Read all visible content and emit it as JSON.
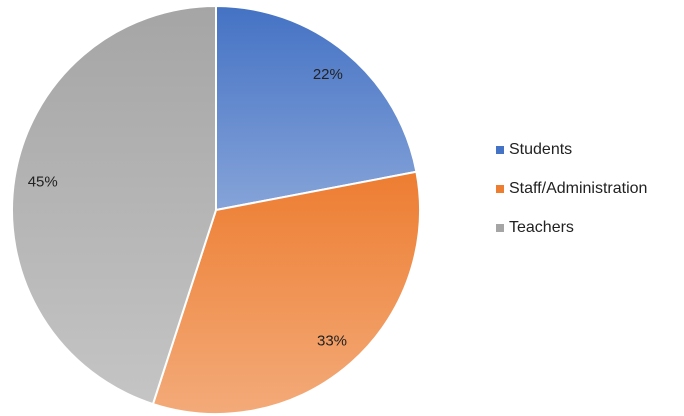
{
  "chart_data": {
    "type": "pie",
    "categories": [
      "Students",
      "Staff/Administration",
      "Teachers"
    ],
    "values": [
      22,
      33,
      45
    ],
    "value_labels": [
      "22%",
      "33%",
      "45%"
    ],
    "colors": [
      "#4472c4",
      "#ed7d31",
      "#a5a5a5"
    ],
    "legend": "right"
  }
}
